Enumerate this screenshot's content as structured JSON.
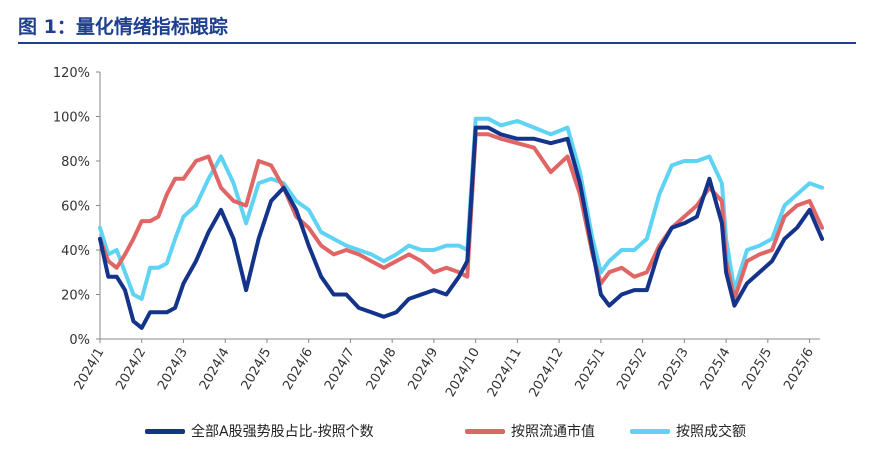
{
  "header": {
    "title": "图 1：量化情绪指标跟踪"
  },
  "chart_data": {
    "type": "line",
    "title": "",
    "xlabel": "",
    "ylabel": "",
    "ylim": [
      0,
      120
    ],
    "y_ticks": [
      "0%",
      "20%",
      "40%",
      "60%",
      "80%",
      "100%",
      "120%"
    ],
    "x_ticks": [
      "2024/1",
      "2024/2",
      "2024/3",
      "2024/4",
      "2024/5",
      "2024/6",
      "2024/7",
      "2024/8",
      "2024/9",
      "2024/10",
      "2024/11",
      "2024/12",
      "2025/1",
      "2025/2",
      "2025/3",
      "2025/4",
      "2025/5",
      "2025/6"
    ],
    "grid": false,
    "legend": "bottom",
    "colors": {
      "navy": "#14338a",
      "red": "#e06666",
      "cyan": "#5fd3f3",
      "title": "#1f3f8f"
    },
    "series": [
      {
        "name": "全部A股强势股占比-按照个数",
        "color": "#14338a",
        "x": [
          0,
          0.2,
          0.4,
          0.6,
          0.8,
          1.0,
          1.2,
          1.4,
          1.6,
          1.8,
          2.0,
          2.3,
          2.6,
          2.9,
          3.2,
          3.5,
          3.8,
          4.1,
          4.4,
          4.7,
          5.0,
          5.3,
          5.6,
          5.9,
          6.2,
          6.5,
          6.8,
          7.1,
          7.4,
          7.7,
          8.0,
          8.3,
          8.6,
          8.8,
          9.0,
          9.3,
          9.6,
          10.0,
          10.4,
          10.8,
          11.2,
          11.5,
          11.8,
          12.0,
          12.2,
          12.5,
          12.8,
          13.1,
          13.4,
          13.7,
          14.0,
          14.3,
          14.6,
          14.9,
          15.0,
          15.2,
          15.5,
          15.8,
          16.1,
          16.4,
          16.7,
          17.0,
          17.3
        ],
        "y": [
          45,
          28,
          28,
          22,
          8,
          5,
          12,
          12,
          12,
          14,
          25,
          35,
          48,
          58,
          45,
          22,
          45,
          62,
          68,
          58,
          42,
          28,
          20,
          20,
          14,
          12,
          10,
          12,
          18,
          20,
          22,
          20,
          28,
          35,
          95,
          95,
          92,
          90,
          90,
          88,
          90,
          70,
          40,
          20,
          15,
          20,
          22,
          22,
          40,
          50,
          52,
          55,
          72,
          52,
          30,
          15,
          25,
          30,
          35,
          45,
          50,
          58,
          45
        ]
      },
      {
        "name": "按照流通市值",
        "color": "#e06666",
        "x": [
          0,
          0.2,
          0.4,
          0.6,
          0.8,
          1.0,
          1.2,
          1.4,
          1.6,
          1.8,
          2.0,
          2.3,
          2.6,
          2.9,
          3.2,
          3.5,
          3.8,
          4.1,
          4.4,
          4.7,
          5.0,
          5.3,
          5.6,
          5.9,
          6.2,
          6.5,
          6.8,
          7.1,
          7.4,
          7.7,
          8.0,
          8.3,
          8.6,
          8.8,
          9.0,
          9.3,
          9.6,
          10.0,
          10.4,
          10.8,
          11.2,
          11.5,
          11.8,
          12.0,
          12.2,
          12.5,
          12.8,
          13.1,
          13.4,
          13.7,
          14.0,
          14.3,
          14.6,
          14.9,
          15.0,
          15.2,
          15.5,
          15.8,
          16.1,
          16.4,
          16.7,
          17.0,
          17.3
        ],
        "y": [
          45,
          35,
          32,
          38,
          45,
          53,
          53,
          55,
          65,
          72,
          72,
          80,
          82,
          68,
          62,
          60,
          80,
          78,
          68,
          55,
          50,
          42,
          38,
          40,
          38,
          35,
          32,
          35,
          38,
          35,
          30,
          32,
          30,
          28,
          92,
          92,
          90,
          88,
          86,
          75,
          82,
          65,
          38,
          25,
          30,
          32,
          28,
          30,
          42,
          50,
          55,
          60,
          68,
          62,
          35,
          18,
          35,
          38,
          40,
          55,
          60,
          62,
          50
        ]
      },
      {
        "name": "按照成交额",
        "color": "#5fd3f3",
        "x": [
          0,
          0.2,
          0.4,
          0.6,
          0.8,
          1.0,
          1.2,
          1.4,
          1.6,
          1.8,
          2.0,
          2.3,
          2.6,
          2.9,
          3.2,
          3.5,
          3.8,
          4.1,
          4.4,
          4.7,
          5.0,
          5.3,
          5.6,
          5.9,
          6.2,
          6.5,
          6.8,
          7.1,
          7.4,
          7.7,
          8.0,
          8.3,
          8.6,
          8.8,
          9.0,
          9.3,
          9.6,
          10.0,
          10.4,
          10.8,
          11.2,
          11.5,
          11.8,
          12.0,
          12.2,
          12.5,
          12.8,
          13.1,
          13.4,
          13.7,
          14.0,
          14.3,
          14.6,
          14.9,
          15.0,
          15.2,
          15.5,
          15.8,
          16.1,
          16.4,
          16.7,
          17.0,
          17.3
        ],
        "y": [
          50,
          38,
          40,
          30,
          20,
          18,
          32,
          32,
          34,
          45,
          55,
          60,
          72,
          82,
          70,
          52,
          70,
          72,
          70,
          62,
          58,
          48,
          45,
          42,
          40,
          38,
          35,
          38,
          42,
          40,
          40,
          42,
          42,
          40,
          99,
          99,
          96,
          98,
          95,
          92,
          95,
          75,
          45,
          30,
          35,
          40,
          40,
          45,
          65,
          78,
          80,
          80,
          82,
          70,
          45,
          22,
          40,
          42,
          45,
          60,
          65,
          70,
          68
        ]
      }
    ]
  }
}
